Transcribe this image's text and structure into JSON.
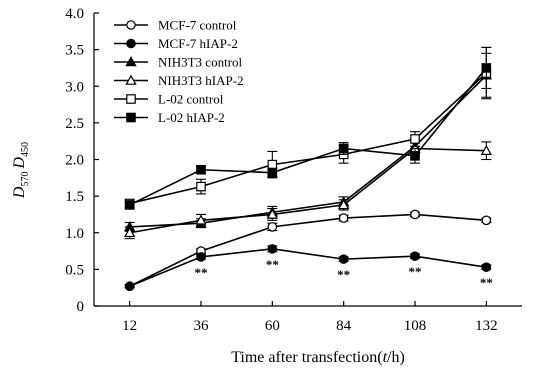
{
  "chart_data": {
    "type": "line",
    "x": [
      12,
      36,
      60,
      84,
      108,
      132
    ],
    "xlabel": "Time after transfection",
    "xlabel_var": "t",
    "xlabel_unit": "h",
    "ylabel_main": "D",
    "ylabel_sub1": "570",
    "ylabel_sub2": "450",
    "ylim": [
      0,
      4.0
    ],
    "yticks": [
      "0",
      "0.5",
      "1.0",
      "1.5",
      "2.0",
      "2.5",
      "3.0",
      "3.5",
      "4.0"
    ],
    "ytick_values": [
      0,
      0.5,
      1.0,
      1.5,
      2.0,
      2.5,
      3.0,
      3.5,
      4.0
    ],
    "xticks": [
      "12",
      "36",
      "60",
      "84",
      "108",
      "132"
    ],
    "legend_position": "top-left",
    "grid": false,
    "series": [
      {
        "name": "MCF-7 control",
        "marker": "circle-open",
        "values": [
          0.27,
          0.75,
          1.08,
          1.2,
          1.25,
          1.17
        ],
        "errors": [
          0.02,
          0.03,
          0.05,
          0.04,
          0.03,
          0.03
        ]
      },
      {
        "name": "MCF-7 hIAP-2",
        "marker": "circle-filled",
        "values": [
          0.27,
          0.67,
          0.78,
          0.64,
          0.68,
          0.53
        ],
        "errors": [
          0.02,
          0.03,
          0.04,
          0.03,
          0.03,
          0.03
        ]
      },
      {
        "name": "NIH3T3 control",
        "marker": "triangle-filled",
        "values": [
          1.08,
          1.13,
          1.28,
          1.42,
          2.18,
          3.15
        ],
        "errors": [
          0.06,
          0.06,
          0.08,
          0.07,
          0.1,
          0.3
        ]
      },
      {
        "name": "NIH3T3 hIAP-2",
        "marker": "triangle-open",
        "values": [
          1.0,
          1.17,
          1.25,
          1.38,
          2.15,
          2.12
        ],
        "errors": [
          0.08,
          0.08,
          0.08,
          0.07,
          0.1,
          0.12
        ]
      },
      {
        "name": "L-02  control",
        "marker": "square-open",
        "values": [
          1.4,
          1.63,
          1.93,
          2.07,
          2.28,
          3.18
        ],
        "errors": [
          0.05,
          0.1,
          0.18,
          0.12,
          0.1,
          0.35
        ]
      },
      {
        "name": "L-02  hIAP-2",
        "marker": "square-filled",
        "values": [
          1.38,
          1.86,
          1.82,
          2.15,
          2.05,
          3.25
        ],
        "errors": [
          0.05,
          0.05,
          0.06,
          0.08,
          0.1,
          0.28
        ]
      }
    ],
    "annotations": [
      {
        "x": 36,
        "text": "**"
      },
      {
        "x": 60,
        "text": "**"
      },
      {
        "x": 84,
        "text": "**"
      },
      {
        "x": 108,
        "text": "**"
      },
      {
        "x": 132,
        "text": "**"
      }
    ]
  }
}
